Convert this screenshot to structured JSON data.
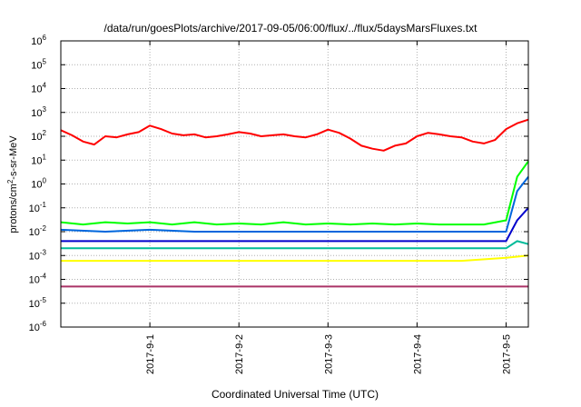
{
  "chart_data": {
    "type": "line",
    "title": "/data/run/goesPlots/archive/2017-09-05/06:00/flux/../flux/5daysMarsFluxes.txt",
    "xlabel": "Coordinated Universal Time (UTC)",
    "ylabel": {
      "base": "protons/cm",
      "sup": "2",
      "rest": "-s-sr-MeV"
    },
    "yscale": "log",
    "ylim": [
      1e-06,
      1000000.0
    ],
    "xlim": [
      "2017-08-31 00:00",
      "2017-09-05 06:00"
    ],
    "grid": true,
    "legend": "none",
    "xticks": [
      "2017-9-1",
      "2017-9-2",
      "2017-9-3",
      "2017-9-4",
      "2017-9-5"
    ],
    "yticks": [
      {
        "base": "10",
        "exp": "-6"
      },
      {
        "base": "10",
        "exp": "-5"
      },
      {
        "base": "10",
        "exp": "-4"
      },
      {
        "base": "10",
        "exp": "-3"
      },
      {
        "base": "10",
        "exp": "-2"
      },
      {
        "base": "10",
        "exp": "-1"
      },
      {
        "base": "10",
        "exp": "0"
      },
      {
        "base": "10",
        "exp": "1"
      },
      {
        "base": "10",
        "exp": "2"
      },
      {
        "base": "10",
        "exp": "3"
      },
      {
        "base": "10",
        "exp": "4"
      },
      {
        "base": "10",
        "exp": "5"
      },
      {
        "base": "10",
        "exp": "6"
      }
    ],
    "series": [
      {
        "color": "#ff0000",
        "x": [
          "2017-08-31 00:00",
          "2017-08-31 03:00",
          "2017-08-31 06:00",
          "2017-08-31 09:00",
          "2017-08-31 12:00",
          "2017-08-31 15:00",
          "2017-08-31 18:00",
          "2017-08-31 21:00",
          "2017-09-01 00:00",
          "2017-09-01 03:00",
          "2017-09-01 06:00",
          "2017-09-01 09:00",
          "2017-09-01 12:00",
          "2017-09-01 15:00",
          "2017-09-01 18:00",
          "2017-09-01 21:00",
          "2017-09-02 00:00",
          "2017-09-02 03:00",
          "2017-09-02 06:00",
          "2017-09-02 09:00",
          "2017-09-02 12:00",
          "2017-09-02 15:00",
          "2017-09-02 18:00",
          "2017-09-02 21:00",
          "2017-09-03 00:00",
          "2017-09-03 03:00",
          "2017-09-03 06:00",
          "2017-09-03 09:00",
          "2017-09-03 12:00",
          "2017-09-03 15:00",
          "2017-09-03 18:00",
          "2017-09-03 21:00",
          "2017-09-04 00:00",
          "2017-09-04 03:00",
          "2017-09-04 06:00",
          "2017-09-04 09:00",
          "2017-09-04 12:00",
          "2017-09-04 15:00",
          "2017-09-04 18:00",
          "2017-09-04 21:00",
          "2017-09-05 00:00",
          "2017-09-05 03:00",
          "2017-09-05 06:00"
        ],
        "y": [
          180,
          110,
          60,
          45,
          100,
          90,
          120,
          150,
          280,
          200,
          130,
          110,
          120,
          90,
          100,
          120,
          150,
          130,
          100,
          110,
          120,
          100,
          90,
          120,
          190,
          140,
          80,
          40,
          30,
          25,
          40,
          50,
          100,
          140,
          120,
          100,
          90,
          60,
          50,
          70,
          200,
          350,
          500
        ]
      },
      {
        "color": "#00ff00",
        "x": [
          "2017-08-31 00:00",
          "2017-08-31 06:00",
          "2017-08-31 12:00",
          "2017-08-31 18:00",
          "2017-09-01 00:00",
          "2017-09-01 06:00",
          "2017-09-01 12:00",
          "2017-09-01 18:00",
          "2017-09-02 00:00",
          "2017-09-02 06:00",
          "2017-09-02 12:00",
          "2017-09-02 18:00",
          "2017-09-03 00:00",
          "2017-09-03 06:00",
          "2017-09-03 12:00",
          "2017-09-03 18:00",
          "2017-09-04 00:00",
          "2017-09-04 06:00",
          "2017-09-04 12:00",
          "2017-09-04 18:00",
          "2017-09-05 00:00",
          "2017-09-05 03:00",
          "2017-09-05 06:00"
        ],
        "y": [
          0.025,
          0.02,
          0.025,
          0.022,
          0.025,
          0.02,
          0.025,
          0.02,
          0.022,
          0.02,
          0.025,
          0.02,
          0.022,
          0.02,
          0.022,
          0.02,
          0.022,
          0.02,
          0.02,
          0.02,
          0.03,
          2,
          9
        ]
      },
      {
        "color": "#0066dd",
        "x": [
          "2017-08-31 00:00",
          "2017-08-31 12:00",
          "2017-09-01 00:00",
          "2017-09-01 12:00",
          "2017-09-02 00:00",
          "2017-09-02 12:00",
          "2017-09-03 00:00",
          "2017-09-03 12:00",
          "2017-09-04 00:00",
          "2017-09-04 12:00",
          "2017-09-05 00:00",
          "2017-09-05 03:00",
          "2017-09-05 06:00"
        ],
        "y": [
          0.012,
          0.01,
          0.012,
          0.01,
          0.01,
          0.01,
          0.01,
          0.01,
          0.01,
          0.01,
          0.01,
          0.5,
          2
        ]
      },
      {
        "color": "#0000cc",
        "x": [
          "2017-08-31 00:00",
          "2017-08-31 12:00",
          "2017-09-01 00:00",
          "2017-09-01 12:00",
          "2017-09-02 00:00",
          "2017-09-02 12:00",
          "2017-09-03 00:00",
          "2017-09-03 12:00",
          "2017-09-04 00:00",
          "2017-09-04 12:00",
          "2017-09-05 00:00",
          "2017-09-05 03:00",
          "2017-09-05 06:00"
        ],
        "y": [
          0.004,
          0.004,
          0.004,
          0.004,
          0.004,
          0.004,
          0.004,
          0.004,
          0.004,
          0.004,
          0.004,
          0.03,
          0.1
        ]
      },
      {
        "color": "#00bb99",
        "x": [
          "2017-08-31 00:00",
          "2017-08-31 12:00",
          "2017-09-01 00:00",
          "2017-09-01 12:00",
          "2017-09-02 00:00",
          "2017-09-02 12:00",
          "2017-09-03 00:00",
          "2017-09-03 12:00",
          "2017-09-04 00:00",
          "2017-09-04 12:00",
          "2017-09-05 00:00",
          "2017-09-05 03:00",
          "2017-09-05 06:00"
        ],
        "y": [
          0.002,
          0.002,
          0.002,
          0.002,
          0.002,
          0.002,
          0.002,
          0.002,
          0.002,
          0.002,
          0.002,
          0.004,
          0.003
        ]
      },
      {
        "color": "#ffff00",
        "x": [
          "2017-08-31 00:00",
          "2017-08-31 12:00",
          "2017-09-01 00:00",
          "2017-09-01 12:00",
          "2017-09-02 00:00",
          "2017-09-02 12:00",
          "2017-09-03 00:00",
          "2017-09-03 12:00",
          "2017-09-04 00:00",
          "2017-09-04 12:00",
          "2017-09-05 00:00",
          "2017-09-05 06:00"
        ],
        "y": [
          0.0006,
          0.0006,
          0.0006,
          0.0006,
          0.0006,
          0.0006,
          0.0006,
          0.0006,
          0.0006,
          0.0006,
          0.0008,
          0.001
        ]
      },
      {
        "color": "#aa3366",
        "x": [
          "2017-08-31 00:00",
          "2017-08-31 12:00",
          "2017-09-01 00:00",
          "2017-09-01 12:00",
          "2017-09-02 00:00",
          "2017-09-02 12:00",
          "2017-09-03 00:00",
          "2017-09-03 12:00",
          "2017-09-04 00:00",
          "2017-09-04 12:00",
          "2017-09-05 00:00",
          "2017-09-05 06:00"
        ],
        "y": [
          5e-05,
          5e-05,
          5e-05,
          5e-05,
          5e-05,
          5e-05,
          5e-05,
          5e-05,
          5e-05,
          5e-05,
          5e-05,
          5e-05
        ]
      }
    ]
  }
}
